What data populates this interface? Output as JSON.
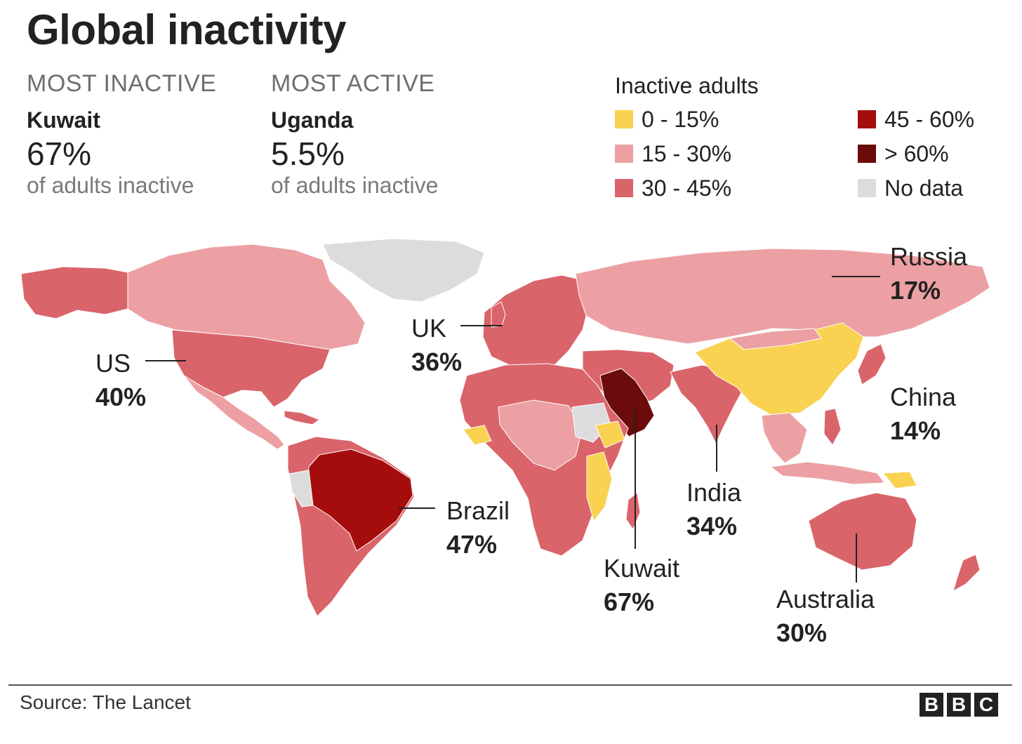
{
  "title": "Global inactivity",
  "most_inactive": {
    "label": "MOST INACTIVE",
    "country": "Kuwait",
    "value": "67%",
    "sub": "of adults inactive"
  },
  "most_active": {
    "label": "MOST ACTIVE",
    "country": "Uganda",
    "value": "5.5%",
    "sub": "of adults inactive"
  },
  "legend": {
    "title": "Inactive adults",
    "items": [
      {
        "label": "0 - 15%",
        "color": "#f9d252"
      },
      {
        "label": "15 - 30%",
        "color": "#eca0a3"
      },
      {
        "label": "30 - 45%",
        "color": "#d9646a"
      },
      {
        "label": "45 - 60%",
        "color": "#a50d0d"
      },
      {
        "label": "> 60%",
        "color": "#6b0b0b"
      },
      {
        "label": "No data",
        "color": "#dcdcdc"
      }
    ]
  },
  "callouts": {
    "us": {
      "name": "US",
      "value": "40%"
    },
    "uk": {
      "name": "UK",
      "value": "36%"
    },
    "russia": {
      "name": "Russia",
      "value": "17%"
    },
    "china": {
      "name": "China",
      "value": "14%"
    },
    "brazil": {
      "name": "Brazil",
      "value": "47%"
    },
    "india": {
      "name": "India",
      "value": "34%"
    },
    "kuwait": {
      "name": "Kuwait",
      "value": "67%"
    },
    "australia": {
      "name": "Australia",
      "value": "30%"
    }
  },
  "footer": {
    "source": "Source: The Lancet",
    "logo_letters": [
      "B",
      "B",
      "C"
    ]
  }
}
